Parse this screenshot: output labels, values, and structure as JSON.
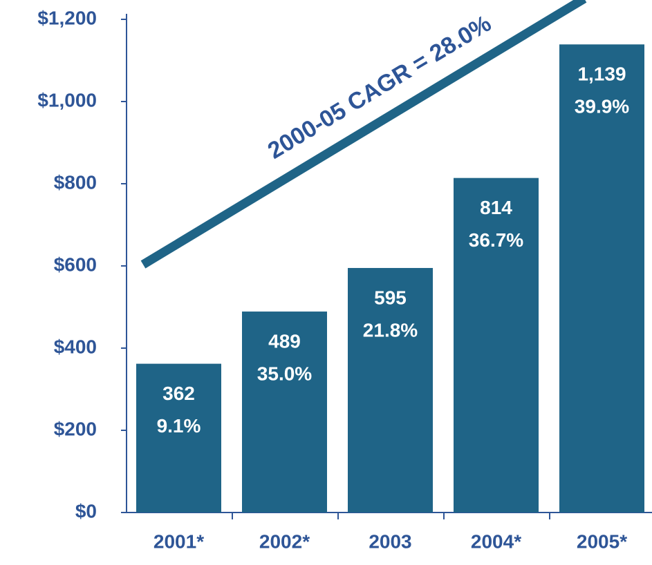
{
  "chart_data": {
    "type": "bar",
    "categories": [
      "2001*",
      "2002*",
      "2003",
      "2004*",
      "2005*"
    ],
    "values": [
      362,
      489,
      595,
      814,
      1139
    ],
    "value_labels": [
      "362",
      "489",
      "595",
      "814",
      "1,139"
    ],
    "growth_labels": [
      "9.1%",
      "35.0%",
      "21.8%",
      "36.7%",
      "39.9%"
    ],
    "annotation": "2000-05 CAGR = 28.0%",
    "color": "#1f6487",
    "ylim": [
      0,
      1200
    ],
    "yticks": [
      {
        "value": 0,
        "label": "$0"
      },
      {
        "value": 200,
        "label": "$200"
      },
      {
        "value": 400,
        "label": "$400"
      },
      {
        "value": 600,
        "label": "$600"
      },
      {
        "value": 800,
        "label": "$800"
      },
      {
        "value": 1000,
        "label": "$1,000"
      },
      {
        "value": 1200,
        "label": "$1,200"
      }
    ],
    "grid": false
  }
}
